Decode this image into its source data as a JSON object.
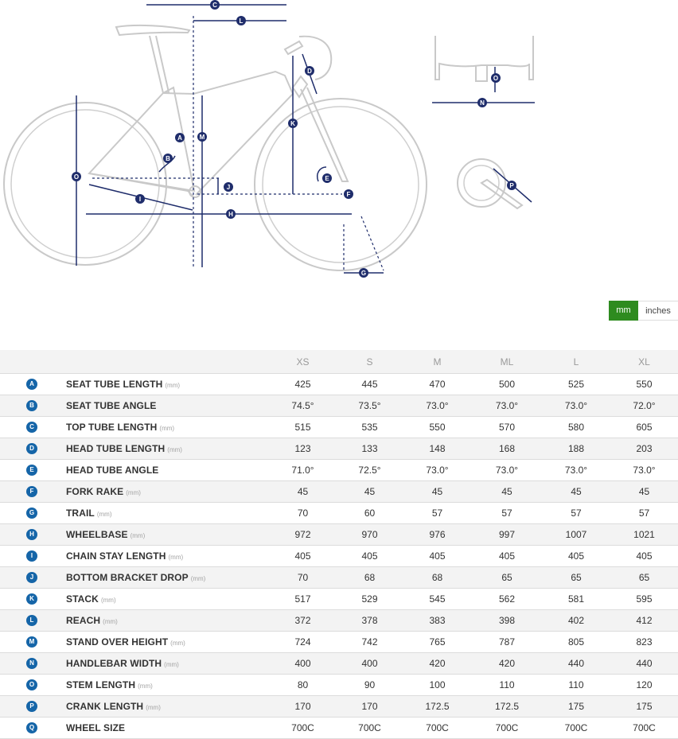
{
  "diagram_markers": [
    "A",
    "B",
    "C",
    "D",
    "E",
    "F",
    "G",
    "H",
    "I",
    "J",
    "K",
    "L",
    "M",
    "N",
    "O",
    "P"
  ],
  "unit_toggle": {
    "selected": "mm",
    "options": [
      "mm",
      "inches"
    ]
  },
  "table": {
    "sizes": [
      "XS",
      "S",
      "M",
      "ML",
      "L",
      "XL"
    ],
    "rows": [
      {
        "letter": "A",
        "name": "SEAT TUBE LENGTH",
        "unit": "(mm)",
        "values": [
          "425",
          "445",
          "470",
          "500",
          "525",
          "550"
        ]
      },
      {
        "letter": "B",
        "name": "SEAT TUBE ANGLE",
        "unit": "",
        "values": [
          "74.5°",
          "73.5°",
          "73.0°",
          "73.0°",
          "73.0°",
          "72.0°"
        ]
      },
      {
        "letter": "C",
        "name": "TOP TUBE LENGTH",
        "unit": "(mm)",
        "values": [
          "515",
          "535",
          "550",
          "570",
          "580",
          "605"
        ]
      },
      {
        "letter": "D",
        "name": "HEAD TUBE LENGTH",
        "unit": "(mm)",
        "values": [
          "123",
          "133",
          "148",
          "168",
          "188",
          "203"
        ]
      },
      {
        "letter": "E",
        "name": "HEAD TUBE ANGLE",
        "unit": "",
        "values": [
          "71.0°",
          "72.5°",
          "73.0°",
          "73.0°",
          "73.0°",
          "73.0°"
        ]
      },
      {
        "letter": "F",
        "name": "FORK RAKE",
        "unit": "(mm)",
        "values": [
          "45",
          "45",
          "45",
          "45",
          "45",
          "45"
        ]
      },
      {
        "letter": "G",
        "name": "TRAIL",
        "unit": "(mm)",
        "values": [
          "70",
          "60",
          "57",
          "57",
          "57",
          "57"
        ]
      },
      {
        "letter": "H",
        "name": "WHEELBASE",
        "unit": "(mm)",
        "values": [
          "972",
          "970",
          "976",
          "997",
          "1007",
          "1021"
        ]
      },
      {
        "letter": "I",
        "name": "CHAIN STAY LENGTH",
        "unit": "(mm)",
        "values": [
          "405",
          "405",
          "405",
          "405",
          "405",
          "405"
        ]
      },
      {
        "letter": "J",
        "name": "BOTTOM BRACKET DROP",
        "unit": "(mm)",
        "values": [
          "70",
          "68",
          "68",
          "65",
          "65",
          "65"
        ]
      },
      {
        "letter": "K",
        "name": "STACK",
        "unit": "(mm)",
        "values": [
          "517",
          "529",
          "545",
          "562",
          "581",
          "595"
        ]
      },
      {
        "letter": "L",
        "name": "REACH",
        "unit": "(mm)",
        "values": [
          "372",
          "378",
          "383",
          "398",
          "402",
          "412"
        ]
      },
      {
        "letter": "M",
        "name": "STAND OVER HEIGHT",
        "unit": "(mm)",
        "values": [
          "724",
          "742",
          "765",
          "787",
          "805",
          "823"
        ]
      },
      {
        "letter": "N",
        "name": "HANDLEBAR WIDTH",
        "unit": "(mm)",
        "values": [
          "400",
          "400",
          "420",
          "420",
          "440",
          "440"
        ]
      },
      {
        "letter": "O",
        "name": "STEM LENGTH",
        "unit": "(mm)",
        "values": [
          "80",
          "90",
          "100",
          "110",
          "110",
          "120"
        ]
      },
      {
        "letter": "P",
        "name": "CRANK LENGTH",
        "unit": "(mm)",
        "values": [
          "170",
          "170",
          "172.5",
          "172.5",
          "175",
          "175"
        ]
      },
      {
        "letter": "Q",
        "name": "WHEEL SIZE",
        "unit": "",
        "values": [
          "700C",
          "700C",
          "700C",
          "700C",
          "700C",
          "700C"
        ]
      }
    ]
  }
}
